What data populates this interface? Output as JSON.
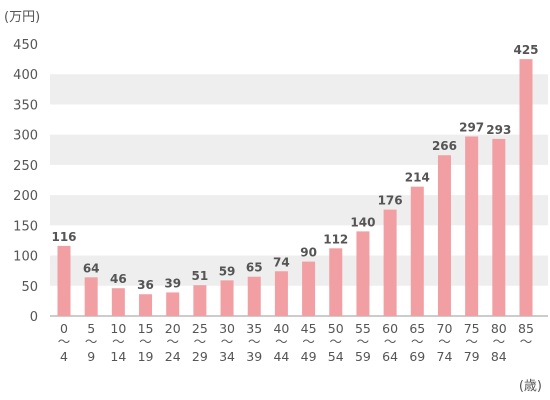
{
  "chart_data": {
    "type": "bar",
    "title": "",
    "ylabel": "(万円)",
    "xlabel": "(歳)",
    "ylim": [
      0,
      450
    ],
    "yticks": [
      0,
      50,
      100,
      150,
      200,
      250,
      300,
      350,
      400,
      450
    ],
    "grid": "alternating-bands",
    "legend": "none",
    "colors": {
      "bar": "#F19FA3",
      "band": "#EEEEEE",
      "text": "#555555",
      "axis": "#999999"
    },
    "categories": [
      {
        "from": "0",
        "to": "4"
      },
      {
        "from": "5",
        "to": "9"
      },
      {
        "from": "10",
        "to": "14"
      },
      {
        "from": "15",
        "to": "19"
      },
      {
        "from": "20",
        "to": "24"
      },
      {
        "from": "25",
        "to": "29"
      },
      {
        "from": "30",
        "to": "34"
      },
      {
        "from": "35",
        "to": "39"
      },
      {
        "from": "40",
        "to": "44"
      },
      {
        "from": "45",
        "to": "49"
      },
      {
        "from": "50",
        "to": "54"
      },
      {
        "from": "55",
        "to": "59"
      },
      {
        "from": "60",
        "to": "64"
      },
      {
        "from": "65",
        "to": "69"
      },
      {
        "from": "70",
        "to": "74"
      },
      {
        "from": "75",
        "to": "79"
      },
      {
        "from": "80",
        "to": "84"
      },
      {
        "from": "85",
        "to": ""
      }
    ],
    "range_separator": "～",
    "values": [
      116,
      64,
      46,
      36,
      39,
      51,
      59,
      65,
      74,
      90,
      112,
      140,
      176,
      214,
      266,
      297,
      293,
      425
    ]
  }
}
